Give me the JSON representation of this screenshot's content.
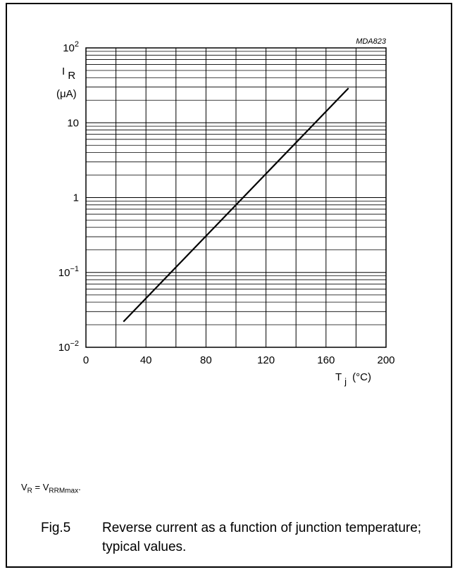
{
  "chart_data": {
    "type": "line",
    "code": "MDA823",
    "y_scale": "log",
    "ylim": [
      0.01,
      100
    ],
    "xlim": [
      0,
      200
    ],
    "grid": true,
    "xlabel": {
      "main": "T",
      "sub": "j",
      "unit": "(°C)"
    },
    "ylabel": {
      "main": "I",
      "sub": "R",
      "unit": "(μA)"
    },
    "x_ticks": [
      0,
      40,
      80,
      120,
      160,
      200
    ],
    "x_tick_labels": [
      "0",
      "40",
      "80",
      "120",
      "160",
      "200"
    ],
    "y_ticks": [
      0.01,
      0.1,
      1,
      10,
      100
    ],
    "y_tick_labels": [
      {
        "base": "10",
        "exp": "−2"
      },
      {
        "base": "10",
        "exp": "−1"
      },
      {
        "base": "1",
        "exp": ""
      },
      {
        "base": "10",
        "exp": ""
      },
      {
        "base": "10",
        "exp": "2"
      }
    ],
    "series": [
      {
        "x": [
          25,
          175
        ],
        "y": [
          0.022,
          29
        ]
      }
    ]
  },
  "note": {
    "v1": "V",
    "s1": "R",
    "eq": " = V",
    "s2": "RRMmax",
    "end": "."
  },
  "caption": {
    "number": "Fig.5",
    "text": "Reverse current as a function of junction temperature; typical values."
  }
}
